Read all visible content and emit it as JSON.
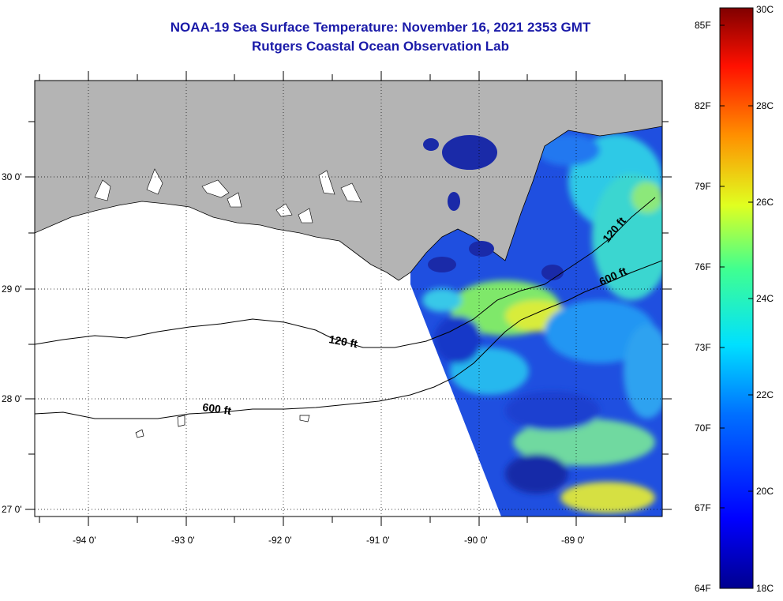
{
  "title": "NOAA-19 Sea Surface Temperature:  November 16, 2021 2353 GMT",
  "subtitle": "Rutgers Coastal Ocean Observation Lab",
  "map": {
    "lat_labels": [
      "30 0'",
      "29 0'",
      "28 0'",
      "27 0'"
    ],
    "lon_labels": [
      "-94 0'",
      "-93 0'",
      "-92 0'",
      "-91 0'",
      "-90 0'",
      "-89 0'"
    ],
    "contours": [
      {
        "name": "120 ft"
      },
      {
        "name": "600 ft"
      }
    ],
    "land_color": "#b4b4b4",
    "water_missing_color": "#ffffff"
  },
  "colorbar": {
    "fahrenheit": [
      "85F",
      "82F",
      "79F",
      "76F",
      "73F",
      "70F",
      "67F",
      "64F"
    ],
    "celsius": [
      "30C",
      "28C",
      "26C",
      "24C",
      "22C",
      "20C",
      "18C"
    ],
    "min_c": 18,
    "max_c": 30
  }
}
